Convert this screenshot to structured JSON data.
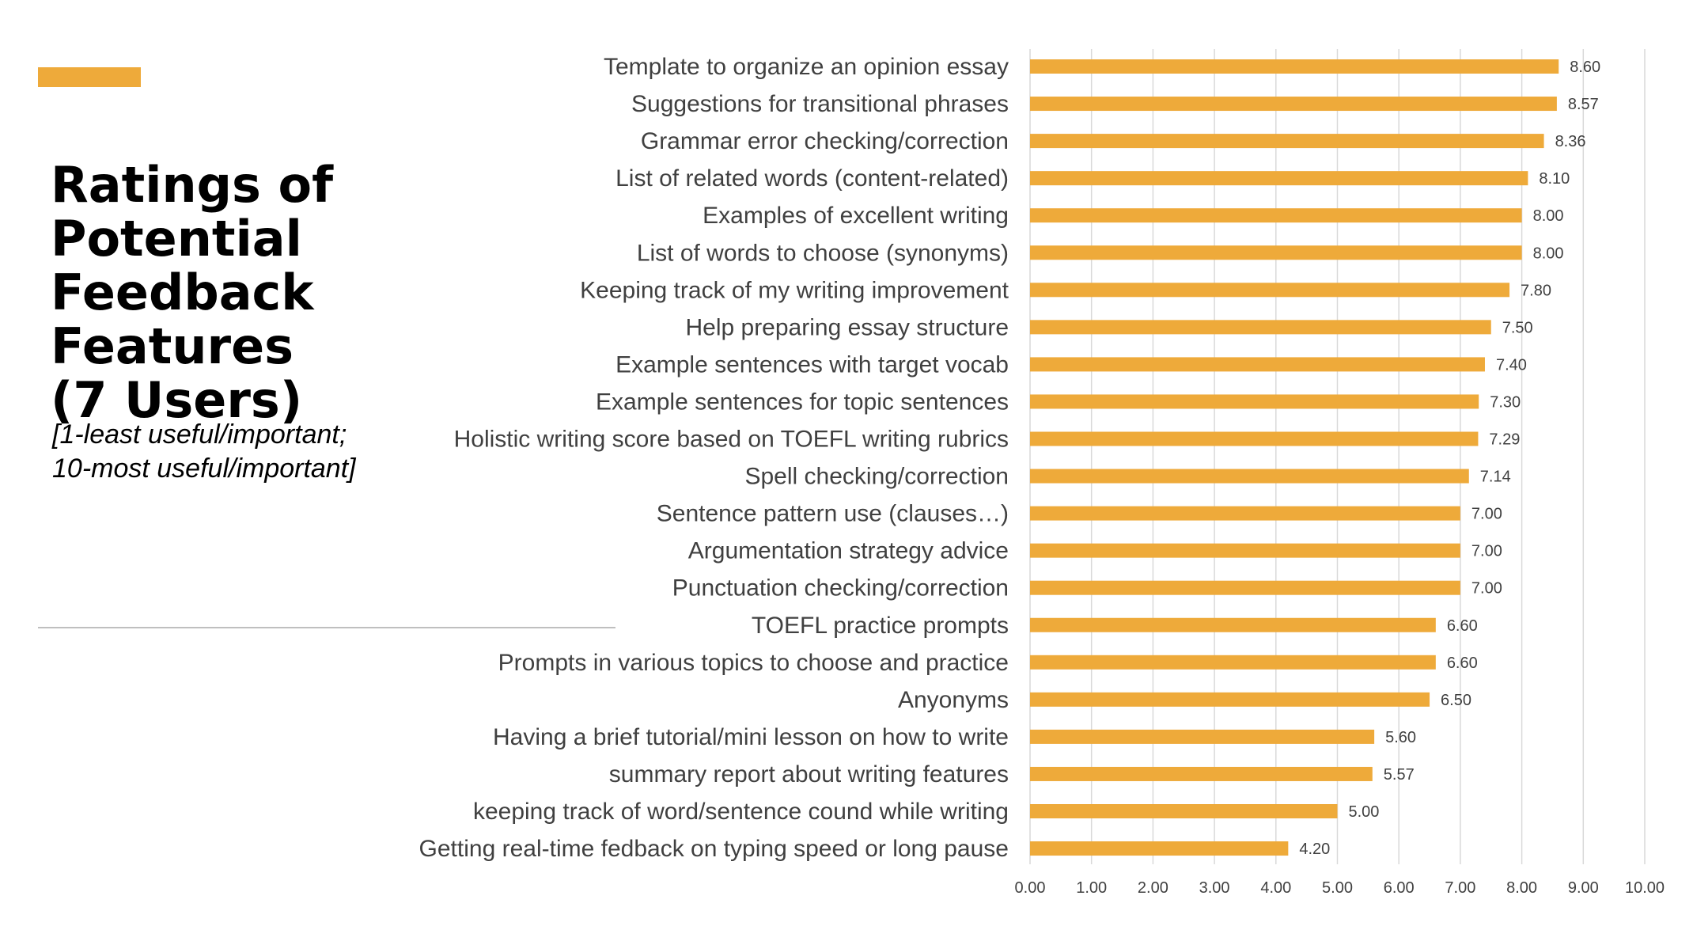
{
  "slide": {
    "title_lines": [
      "Ratings of",
      "Potential",
      "Feedback Features",
      "(7 Users)"
    ],
    "subtitle_lines": [
      "[1-least useful/important;",
      "10-most useful/important]"
    ]
  },
  "colors": {
    "accent": "#EEAA3A",
    "bar": "#EEAA3A",
    "grid": "#d9d9d9",
    "label_text": "#404040",
    "value_text": "#404040"
  },
  "chart_data": {
    "type": "bar",
    "orientation": "horizontal",
    "title": "Ratings of Potential Feedback Features (7 Users)",
    "xlim": [
      0,
      10
    ],
    "x_ticks": [
      "0.00",
      "1.00",
      "2.00",
      "3.00",
      "4.00",
      "5.00",
      "6.00",
      "7.00",
      "8.00",
      "9.00",
      "10.00"
    ],
    "grid": true,
    "categories": [
      "Template to organize an opinion essay",
      "Suggestions for transitional phrases",
      "Grammar error checking/correction",
      "List of related words (content-related)",
      "Examples of excellent writing",
      "List of words to choose (synonyms)",
      "Keeping track of my writing improvement",
      "Help preparing essay structure",
      "Example sentences with target vocab",
      "Example sentences for topic sentences",
      "Holistic writing score based on TOEFL writing rubrics",
      "Spell checking/correction",
      "Sentence pattern use (clauses…)",
      "Argumentation strategy advice",
      "Punctuation checking/correction",
      "TOEFL practice prompts",
      "Prompts in various topics to choose and practice",
      "Anyonyms",
      "Having a brief tutorial/mini lesson on how to write",
      "summary report about writing features",
      "keeping track of word/sentence cound while writing",
      "Getting real-time fedback on typing speed or long pause"
    ],
    "values": [
      8.6,
      8.57,
      8.36,
      8.1,
      8.0,
      8.0,
      7.8,
      7.5,
      7.4,
      7.3,
      7.29,
      7.14,
      7.0,
      7.0,
      7.0,
      6.6,
      6.6,
      6.5,
      5.6,
      5.57,
      5.0,
      4.2
    ],
    "value_labels": [
      "8.60",
      "8.57",
      "8.36",
      "8.10",
      "8.00",
      "8.00",
      "7.80",
      "7.50",
      "7.40",
      "7.30",
      "7.29",
      "7.14",
      "7.00",
      "7.00",
      "7.00",
      "6.60",
      "6.60",
      "6.50",
      "5.60",
      "5.57",
      "5.00",
      "4.20"
    ]
  }
}
